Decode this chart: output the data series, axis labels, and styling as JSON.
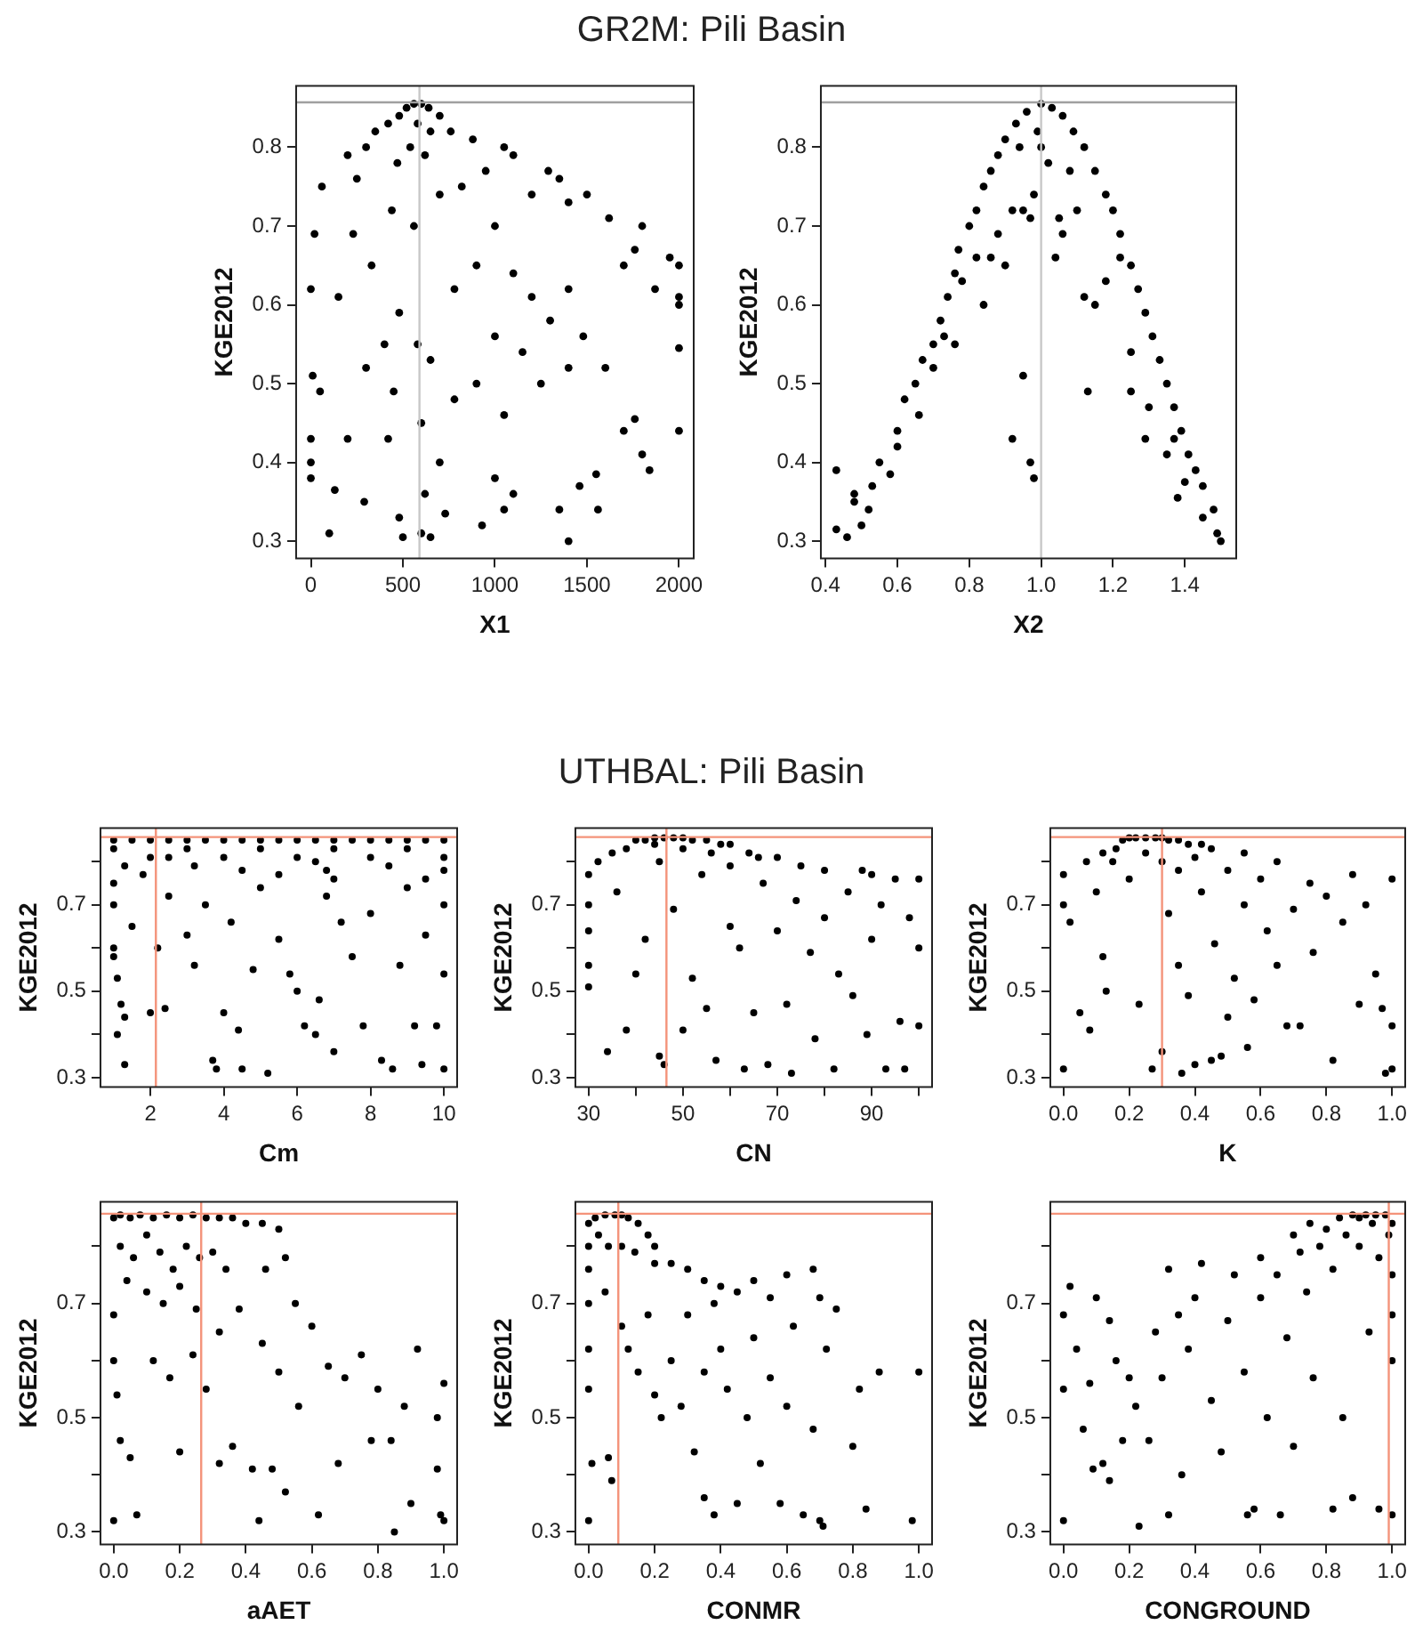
{
  "chart_data": [
    {
      "type": "other",
      "title": "GR2M: Pili Basin"
    },
    {
      "type": "scatter",
      "xlabel": "X1",
      "ylabel": "KGE2012",
      "color": "#000000",
      "marker": "circle",
      "x": [
        560,
        600,
        640,
        520,
        480,
        700,
        420,
        580,
        650,
        760,
        350,
        540,
        620,
        880,
        1050,
        1100,
        200,
        300,
        470,
        950,
        1290,
        1350,
        250,
        60,
        820,
        1500,
        1400,
        700,
        440,
        1200,
        560,
        1000,
        20,
        230,
        1800,
        1620,
        1760,
        1700,
        1950,
        2000,
        2000,
        2000,
        0,
        150,
        900,
        1100,
        330,
        780,
        1400,
        1870,
        480,
        1200,
        1300,
        1480,
        580,
        400,
        650,
        1000,
        1600,
        2000,
        10,
        50,
        300,
        900,
        1150,
        1250,
        1400,
        780,
        450,
        200,
        600,
        1050,
        1700,
        2000,
        1760,
        0,
        0,
        0,
        420,
        700,
        1000,
        1550,
        1800,
        1840,
        1460,
        130,
        290,
        620,
        1100,
        1050,
        1350,
        1560,
        730,
        480,
        930,
        100,
        500,
        600,
        650,
        1400
      ],
      "values": [
        0.855,
        0.855,
        0.85,
        0.85,
        0.84,
        0.84,
        0.83,
        0.83,
        0.82,
        0.82,
        0.82,
        0.8,
        0.79,
        0.81,
        0.8,
        0.79,
        0.79,
        0.8,
        0.78,
        0.77,
        0.77,
        0.76,
        0.76,
        0.75,
        0.75,
        0.74,
        0.73,
        0.74,
        0.72,
        0.74,
        0.7,
        0.7,
        0.69,
        0.69,
        0.7,
        0.71,
        0.67,
        0.65,
        0.66,
        0.65,
        0.61,
        0.6,
        0.62,
        0.61,
        0.65,
        0.64,
        0.65,
        0.62,
        0.62,
        0.62,
        0.59,
        0.61,
        0.58,
        0.56,
        0.55,
        0.55,
        0.53,
        0.56,
        0.52,
        0.545,
        0.51,
        0.49,
        0.52,
        0.5,
        0.54,
        0.5,
        0.52,
        0.48,
        0.49,
        0.43,
        0.45,
        0.46,
        0.44,
        0.44,
        0.455,
        0.43,
        0.4,
        0.38,
        0.43,
        0.4,
        0.38,
        0.385,
        0.41,
        0.39,
        0.37,
        0.365,
        0.35,
        0.36,
        0.36,
        0.34,
        0.34,
        0.34,
        0.335,
        0.33,
        0.32,
        0.31,
        0.305,
        0.31,
        0.305,
        0.3
      ],
      "xlim": [
        -80,
        2080
      ],
      "xticks": [
        0,
        500,
        1000,
        1500,
        2000
      ],
      "ylim": [
        0.278,
        0.878
      ],
      "yticks": [
        0.3,
        0.4,
        0.5,
        0.6,
        0.7,
        0.8
      ],
      "ref_lines": [
        {
          "axis": "y",
          "value": 0.857,
          "color": "#a0a0a0"
        },
        {
          "axis": "x",
          "value": 590,
          "color": "#c8c8c8"
        }
      ]
    },
    {
      "type": "scatter",
      "xlabel": "X2",
      "ylabel": "KGE2012",
      "color": "#000000",
      "marker": "circle",
      "x": [
        0.43,
        0.46,
        0.48,
        0.5,
        0.53,
        0.55,
        0.58,
        0.6,
        0.62,
        0.65,
        0.67,
        0.7,
        0.72,
        0.74,
        0.76,
        0.77,
        0.8,
        0.82,
        0.84,
        0.86,
        0.88,
        0.9,
        0.93,
        0.96,
        1.0,
        1.03,
        1.06,
        1.09,
        1.12,
        1.15,
        1.18,
        1.2,
        1.22,
        1.25,
        1.27,
        1.29,
        1.31,
        1.33,
        1.35,
        1.37,
        1.39,
        1.41,
        1.43,
        1.45,
        1.48,
        1.5,
        1.49,
        0.43,
        0.48,
        0.52,
        0.6,
        0.66,
        0.7,
        0.73,
        0.76,
        0.78,
        0.82,
        0.84,
        0.86,
        0.88,
        0.9,
        0.92,
        0.95,
        0.97,
        0.98,
        1.0,
        1.02,
        0.99,
        1.05,
        1.06,
        1.1,
        1.12,
        1.13,
        1.15,
        1.18,
        1.22,
        1.25,
        1.25,
        1.29,
        1.3,
        1.35,
        1.37,
        1.38,
        1.4,
        1.45,
        0.92,
        0.95,
        0.97,
        0.98,
        1.04,
        1.08,
        0.94
      ],
      "values": [
        0.315,
        0.305,
        0.36,
        0.32,
        0.37,
        0.4,
        0.385,
        0.44,
        0.48,
        0.5,
        0.53,
        0.55,
        0.58,
        0.61,
        0.64,
        0.67,
        0.7,
        0.72,
        0.75,
        0.77,
        0.79,
        0.81,
        0.83,
        0.845,
        0.855,
        0.85,
        0.84,
        0.82,
        0.8,
        0.77,
        0.74,
        0.72,
        0.69,
        0.65,
        0.62,
        0.59,
        0.56,
        0.53,
        0.5,
        0.47,
        0.44,
        0.41,
        0.39,
        0.37,
        0.34,
        0.3,
        0.31,
        0.39,
        0.35,
        0.34,
        0.42,
        0.46,
        0.52,
        0.56,
        0.55,
        0.63,
        0.66,
        0.6,
        0.66,
        0.69,
        0.65,
        0.72,
        0.72,
        0.71,
        0.74,
        0.8,
        0.78,
        0.82,
        0.71,
        0.69,
        0.72,
        0.61,
        0.49,
        0.6,
        0.63,
        0.66,
        0.54,
        0.49,
        0.43,
        0.47,
        0.41,
        0.43,
        0.355,
        0.375,
        0.33,
        0.43,
        0.51,
        0.4,
        0.38,
        0.66,
        0.77,
        0.8
      ],
      "xlim": [
        0.387,
        1.543
      ],
      "xticks": [
        0.4,
        0.6,
        0.8,
        {
          "value": 1.0,
          "label": "1.0"
        },
        1.2,
        1.4
      ],
      "ylim": [
        0.278,
        0.878
      ],
      "yticks": [
        0.3,
        0.4,
        0.5,
        0.6,
        0.7,
        0.8
      ],
      "ref_lines": [
        {
          "axis": "y",
          "value": 0.857,
          "color": "#a0a0a0"
        },
        {
          "axis": "x",
          "value": 1.0,
          "color": "#c8c8c8"
        }
      ]
    },
    {
      "type": "other",
      "title": "UTHBAL: Pili Basin"
    },
    {
      "type": "scatter",
      "xlabel": "Cm",
      "ylabel": "KGE2012",
      "color": "#000000",
      "marker": "circle",
      "x": [
        1,
        1.5,
        2,
        2.5,
        3,
        3.5,
        4,
        4.5,
        5,
        5.5,
        6,
        6.5,
        7,
        7.5,
        8,
        8.5,
        9,
        9.5,
        10,
        1,
        2,
        3,
        4,
        5,
        6,
        7,
        8,
        9,
        10,
        1,
        1,
        1,
        1,
        1.1,
        1.2,
        1.1,
        1.3,
        1.3,
        1.5,
        1.8,
        2,
        2.2,
        2.4,
        2.5,
        3,
        3.2,
        3.5,
        3.7,
        3.8,
        4,
        4.2,
        4.4,
        4.5,
        4.8,
        5,
        5.2,
        5.5,
        5.8,
        6,
        6.2,
        6.5,
        6.6,
        6.8,
        7,
        7.2,
        7.5,
        7.8,
        8,
        8.3,
        8.6,
        8.8,
        9,
        9.2,
        9.4,
        9.5,
        9.8,
        10,
        10,
        10,
        10,
        6.8,
        7,
        5.5,
        8.5,
        3.2,
        1.3,
        9.5,
        4.5,
        2.5,
        6.5
      ],
      "values": [
        0.85,
        0.85,
        0.85,
        0.85,
        0.85,
        0.85,
        0.85,
        0.85,
        0.85,
        0.85,
        0.85,
        0.85,
        0.85,
        0.85,
        0.85,
        0.85,
        0.85,
        0.85,
        0.85,
        0.83,
        0.81,
        0.83,
        0.81,
        0.83,
        0.81,
        0.83,
        0.81,
        0.83,
        0.81,
        0.75,
        0.7,
        0.6,
        0.58,
        0.53,
        0.47,
        0.4,
        0.44,
        0.33,
        0.65,
        0.77,
        0.45,
        0.6,
        0.46,
        0.72,
        0.63,
        0.56,
        0.7,
        0.34,
        0.32,
        0.45,
        0.66,
        0.41,
        0.32,
        0.55,
        0.74,
        0.31,
        0.62,
        0.54,
        0.5,
        0.42,
        0.4,
        0.48,
        0.72,
        0.36,
        0.66,
        0.58,
        0.42,
        0.68,
        0.34,
        0.32,
        0.56,
        0.74,
        0.42,
        0.33,
        0.63,
        0.42,
        0.32,
        0.54,
        0.7,
        0.78,
        0.78,
        0.76,
        0.77,
        0.79,
        0.79,
        0.79,
        0.76,
        0.78,
        0.81,
        0.8
      ],
      "xlim": [
        0.64,
        10.36
      ],
      "xticks": [
        2,
        4,
        6,
        8,
        10
      ],
      "ylim": [
        0.278,
        0.878
      ],
      "yticks": [
        0.3,
        {
          "value": 0.4,
          "label": null
        },
        0.5,
        {
          "value": 0.6,
          "label": null
        },
        0.7,
        {
          "value": 0.8,
          "label": null
        }
      ],
      "ref_lines": [
        {
          "axis": "y",
          "value": 0.857,
          "color": "#f4937a"
        },
        {
          "axis": "x",
          "value": 2.15,
          "color": "#f4937a"
        }
      ]
    },
    {
      "type": "scatter",
      "xlabel": "CN",
      "ylabel": "KGE2012",
      "color": "#000000",
      "marker": "circle",
      "x": [
        30,
        30,
        30,
        30,
        30,
        32,
        35,
        34,
        36,
        38,
        38,
        40,
        42,
        44,
        46,
        48,
        50,
        52,
        55,
        58,
        60,
        44,
        50,
        40,
        42,
        45,
        46,
        48,
        50,
        52,
        54,
        55,
        57,
        60,
        62,
        63,
        64,
        65,
        67,
        68,
        70,
        70,
        72,
        73,
        74,
        75,
        77,
        78,
        80,
        80,
        82,
        83,
        85,
        86,
        88,
        89,
        90,
        92,
        93,
        95,
        96,
        97,
        98,
        100,
        100,
        100,
        90,
        60,
        66,
        56,
        45
      ],
      "values": [
        0.77,
        0.7,
        0.64,
        0.56,
        0.51,
        0.8,
        0.82,
        0.36,
        0.73,
        0.41,
        0.83,
        0.85,
        0.85,
        0.855,
        0.855,
        0.855,
        0.855,
        0.85,
        0.85,
        0.84,
        0.84,
        0.84,
        0.83,
        0.54,
        0.62,
        0.35,
        0.33,
        0.69,
        0.41,
        0.53,
        0.77,
        0.46,
        0.34,
        0.65,
        0.6,
        0.32,
        0.82,
        0.45,
        0.75,
        0.33,
        0.64,
        0.81,
        0.47,
        0.31,
        0.71,
        0.79,
        0.59,
        0.39,
        0.67,
        0.78,
        0.32,
        0.54,
        0.73,
        0.49,
        0.78,
        0.4,
        0.62,
        0.7,
        0.32,
        0.76,
        0.43,
        0.32,
        0.67,
        0.76,
        0.6,
        0.42,
        0.77,
        0.79,
        0.81,
        0.82,
        0.8
      ],
      "xlim": [
        27.2,
        102.8
      ],
      "xticks": [
        30,
        {
          "value": 40,
          "label": null
        },
        50,
        {
          "value": 60,
          "label": null
        },
        70,
        {
          "value": 80,
          "label": null
        },
        90,
        {
          "value": 100,
          "label": null
        }
      ],
      "ylim": [
        0.278,
        0.878
      ],
      "yticks": [
        0.3,
        {
          "value": 0.4,
          "label": null
        },
        0.5,
        {
          "value": 0.6,
          "label": null
        },
        0.7,
        {
          "value": 0.8,
          "label": null
        }
      ],
      "ref_lines": [
        {
          "axis": "y",
          "value": 0.857,
          "color": "#f4937a"
        },
        {
          "axis": "x",
          "value": 46.5,
          "color": "#f4937a"
        }
      ]
    },
    {
      "type": "scatter",
      "xlabel": "K",
      "ylabel": "KGE2012",
      "color": "#000000",
      "marker": "circle",
      "x": [
        0,
        0,
        0,
        0.02,
        0.05,
        0.07,
        0.08,
        0.1,
        0.12,
        0.13,
        0.15,
        0.16,
        0.18,
        0.2,
        0.22,
        0.25,
        0.28,
        0.3,
        0.32,
        0.35,
        0.38,
        0.42,
        0.45,
        0.25,
        0.3,
        0.35,
        0.4,
        0.2,
        0.23,
        0.27,
        0.3,
        0.32,
        0.35,
        0.36,
        0.38,
        0.4,
        0.42,
        0.45,
        0.46,
        0.48,
        0.5,
        0.5,
        0.52,
        0.55,
        0.56,
        0.58,
        0.6,
        0.62,
        0.65,
        0.68,
        0.7,
        0.72,
        0.75,
        0.76,
        0.8,
        0.82,
        0.85,
        0.88,
        0.9,
        0.92,
        0.95,
        0.97,
        0.98,
        1.0,
        1.0,
        1.0,
        0.55,
        0.65,
        0.12
      ],
      "values": [
        0.32,
        0.7,
        0.77,
        0.66,
        0.45,
        0.8,
        0.41,
        0.73,
        0.58,
        0.5,
        0.8,
        0.83,
        0.85,
        0.855,
        0.855,
        0.855,
        0.855,
        0.855,
        0.85,
        0.85,
        0.84,
        0.84,
        0.83,
        0.82,
        0.8,
        0.78,
        0.81,
        0.76,
        0.47,
        0.32,
        0.36,
        0.68,
        0.56,
        0.31,
        0.49,
        0.33,
        0.73,
        0.34,
        0.61,
        0.35,
        0.78,
        0.44,
        0.53,
        0.7,
        0.37,
        0.48,
        0.76,
        0.64,
        0.56,
        0.42,
        0.69,
        0.42,
        0.75,
        0.59,
        0.72,
        0.34,
        0.66,
        0.77,
        0.47,
        0.7,
        0.54,
        0.46,
        0.31,
        0.32,
        0.76,
        0.42,
        0.82,
        0.8,
        0.82
      ],
      "xlim": [
        -0.04,
        1.04
      ],
      "xticks": [
        {
          "value": 0,
          "label": "0.0"
        },
        0.2,
        0.4,
        0.6,
        0.8,
        {
          "value": 1,
          "label": "1.0"
        }
      ],
      "ylim": [
        0.278,
        0.878
      ],
      "yticks": [
        0.3,
        {
          "value": 0.4,
          "label": null
        },
        0.5,
        {
          "value": 0.6,
          "label": null
        },
        0.7,
        {
          "value": 0.8,
          "label": null
        }
      ],
      "ref_lines": [
        {
          "axis": "y",
          "value": 0.857,
          "color": "#f4937a"
        },
        {
          "axis": "x",
          "value": 0.3,
          "color": "#f4937a"
        }
      ]
    },
    {
      "type": "scatter",
      "xlabel": "aAET",
      "ylabel": "KGE2012",
      "color": "#000000",
      "marker": "circle",
      "x": [
        0,
        0.02,
        0.05,
        0.08,
        0.12,
        0.16,
        0.2,
        0.24,
        0.28,
        0.32,
        0.36,
        0.4,
        0.45,
        0.5,
        0.02,
        0.06,
        0.1,
        0.14,
        0.18,
        0.22,
        0.26,
        0.3,
        0.34,
        0.04,
        0.1,
        0.15,
        0.2,
        0.25,
        0,
        0,
        0.01,
        0.02,
        0.05,
        0,
        0.07,
        0.12,
        0.17,
        0.2,
        0.24,
        0.28,
        0.32,
        0.32,
        0.36,
        0.38,
        0.42,
        0.44,
        0.45,
        0.48,
        0.5,
        0.52,
        0.55,
        0.56,
        0.6,
        0.62,
        0.65,
        0.68,
        0.7,
        0.75,
        0.78,
        0.8,
        0.84,
        0.85,
        0.88,
        0.9,
        0.92,
        0.98,
        0.98,
        0.99,
        1,
        1,
        0.46,
        0.52
      ],
      "values": [
        0.85,
        0.855,
        0.85,
        0.855,
        0.85,
        0.855,
        0.85,
        0.855,
        0.85,
        0.85,
        0.85,
        0.84,
        0.84,
        0.83,
        0.8,
        0.78,
        0.82,
        0.79,
        0.76,
        0.8,
        0.78,
        0.79,
        0.76,
        0.74,
        0.72,
        0.7,
        0.73,
        0.69,
        0.68,
        0.6,
        0.54,
        0.46,
        0.43,
        0.32,
        0.33,
        0.6,
        0.57,
        0.44,
        0.61,
        0.55,
        0.42,
        0.65,
        0.45,
        0.69,
        0.41,
        0.32,
        0.63,
        0.41,
        0.58,
        0.37,
        0.7,
        0.52,
        0.66,
        0.33,
        0.59,
        0.42,
        0.57,
        0.61,
        0.46,
        0.55,
        0.46,
        0.3,
        0.52,
        0.35,
        0.62,
        0.5,
        0.41,
        0.33,
        0.56,
        0.32,
        0.76,
        0.78
      ],
      "xlim": [
        -0.04,
        1.04
      ],
      "xticks": [
        {
          "value": 0,
          "label": "0.0"
        },
        0.2,
        0.4,
        0.6,
        0.8,
        {
          "value": 1,
          "label": "1.0"
        }
      ],
      "ylim": [
        0.278,
        0.878
      ],
      "yticks": [
        0.3,
        {
          "value": 0.4,
          "label": null
        },
        0.5,
        {
          "value": 0.6,
          "label": null
        },
        0.7,
        {
          "value": 0.8,
          "label": null
        }
      ],
      "ref_lines": [
        {
          "axis": "y",
          "value": 0.857,
          "color": "#f4937a"
        },
        {
          "axis": "x",
          "value": 0.265,
          "color": "#f4937a"
        }
      ]
    },
    {
      "type": "scatter",
      "xlabel": "CONMR",
      "ylabel": "KGE2012",
      "color": "#000000",
      "marker": "circle",
      "x": [
        0,
        0,
        0,
        0.02,
        0.05,
        0.08,
        0.1,
        0.12,
        0.15,
        0.18,
        0.2,
        0.03,
        0.06,
        0.1,
        0.14,
        0.2,
        0.25,
        0.3,
        0.35,
        0.4,
        0.45,
        0.5,
        0.55,
        0.6,
        0.68,
        0,
        0,
        0,
        0.01,
        0,
        0.06,
        0.07,
        0.05,
        0.1,
        0.12,
        0.15,
        0.18,
        0.2,
        0.22,
        0.25,
        0.28,
        0.3,
        0.32,
        0.35,
        0.35,
        0.38,
        0.4,
        0.42,
        0.45,
        0.48,
        0.5,
        0.52,
        0.55,
        0.58,
        0.6,
        0.62,
        0.65,
        0.68,
        0.7,
        0.71,
        0.72,
        0.75,
        0.8,
        0.82,
        0.84,
        0.88,
        0.98,
        1,
        0.7,
        0.38
      ],
      "values": [
        0.84,
        0.8,
        0.76,
        0.85,
        0.855,
        0.855,
        0.855,
        0.85,
        0.84,
        0.82,
        0.8,
        0.82,
        0.8,
        0.8,
        0.79,
        0.77,
        0.77,
        0.76,
        0.74,
        0.73,
        0.72,
        0.74,
        0.71,
        0.75,
        0.76,
        0.7,
        0.62,
        0.55,
        0.42,
        0.32,
        0.43,
        0.39,
        0.72,
        0.66,
        0.62,
        0.58,
        0.68,
        0.54,
        0.5,
        0.6,
        0.52,
        0.68,
        0.44,
        0.36,
        0.58,
        0.33,
        0.62,
        0.55,
        0.35,
        0.5,
        0.64,
        0.42,
        0.57,
        0.35,
        0.52,
        0.66,
        0.33,
        0.48,
        0.32,
        0.31,
        0.62,
        0.69,
        0.45,
        0.55,
        0.34,
        0.58,
        0.32,
        0.58,
        0.71,
        0.7
      ],
      "xlim": [
        -0.04,
        1.04
      ],
      "xticks": [
        {
          "value": 0,
          "label": "0.0"
        },
        0.2,
        0.4,
        0.6,
        0.8,
        {
          "value": 1,
          "label": "1.0"
        }
      ],
      "ylim": [
        0.278,
        0.878
      ],
      "yticks": [
        0.3,
        {
          "value": 0.4,
          "label": null
        },
        0.5,
        {
          "value": 0.6,
          "label": null
        },
        0.7,
        {
          "value": 0.8,
          "label": null
        }
      ],
      "ref_lines": [
        {
          "axis": "y",
          "value": 0.857,
          "color": "#f4937a"
        },
        {
          "axis": "x",
          "value": 0.09,
          "color": "#f4937a"
        }
      ]
    },
    {
      "type": "scatter",
      "xlabel": "CONGROUND",
      "ylabel": "KGE2012",
      "color": "#000000",
      "marker": "circle",
      "x": [
        0,
        0,
        0,
        0.02,
        0.04,
        0.06,
        0.08,
        0.09,
        0.1,
        0.12,
        0.14,
        0.14,
        0.16,
        0.18,
        0.2,
        0.22,
        0.23,
        0.26,
        0.28,
        0.3,
        0.32,
        0.32,
        0.35,
        0.36,
        0.38,
        0.4,
        0.42,
        0.45,
        0.48,
        0.5,
        0.52,
        0.55,
        0.56,
        0.58,
        0.6,
        0.6,
        0.62,
        0.65,
        0.66,
        0.68,
        0.7,
        0.72,
        0.74,
        0.76,
        0.78,
        0.8,
        0.82,
        0.82,
        0.84,
        0.85,
        0.86,
        0.88,
        0.88,
        0.9,
        0.9,
        0.92,
        0.94,
        0.95,
        0.96,
        0.96,
        0.98,
        0.99,
        1,
        1,
        1,
        1,
        1,
        0.93,
        0.7,
        0.75
      ],
      "values": [
        0.32,
        0.55,
        0.68,
        0.73,
        0.62,
        0.48,
        0.56,
        0.41,
        0.71,
        0.42,
        0.39,
        0.67,
        0.6,
        0.46,
        0.57,
        0.52,
        0.31,
        0.46,
        0.65,
        0.57,
        0.33,
        0.76,
        0.68,
        0.4,
        0.62,
        0.71,
        0.77,
        0.53,
        0.44,
        0.67,
        0.75,
        0.58,
        0.33,
        0.34,
        0.71,
        0.78,
        0.5,
        0.75,
        0.33,
        0.64,
        0.45,
        0.79,
        0.72,
        0.57,
        0.8,
        0.83,
        0.34,
        0.76,
        0.85,
        0.5,
        0.82,
        0.855,
        0.36,
        0.8,
        0.85,
        0.855,
        0.84,
        0.855,
        0.34,
        0.78,
        0.855,
        0.82,
        0.75,
        0.68,
        0.6,
        0.33,
        0.84,
        0.65,
        0.82,
        0.84
      ],
      "xlim": [
        -0.04,
        1.04
      ],
      "xticks": [
        {
          "value": 0,
          "label": "0.0"
        },
        0.2,
        0.4,
        0.6,
        0.8,
        {
          "value": 1,
          "label": "1.0"
        }
      ],
      "ylim": [
        0.278,
        0.878
      ],
      "yticks": [
        0.3,
        {
          "value": 0.4,
          "label": null
        },
        0.5,
        {
          "value": 0.6,
          "label": null
        },
        0.7,
        {
          "value": 0.8,
          "label": null
        }
      ],
      "ref_lines": [
        {
          "axis": "y",
          "value": 0.857,
          "color": "#f4937a"
        },
        {
          "axis": "x",
          "value": 0.99,
          "color": "#f4937a"
        }
      ]
    }
  ]
}
